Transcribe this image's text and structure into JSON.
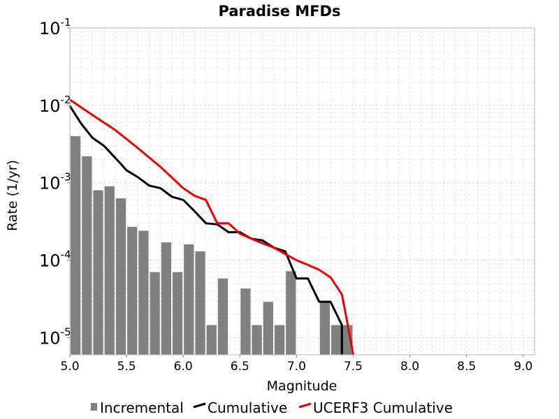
{
  "chart_data": {
    "type": "bar",
    "title": "Paradise MFDs",
    "xlabel": "Magnitude",
    "ylabel": "Rate (1/yr)",
    "xlim": [
      5.0,
      9.1
    ],
    "ylim": [
      6e-06,
      0.1
    ],
    "yscale": "log",
    "grid": true,
    "legend_position": "bottom",
    "x_ticks": [
      "5.0",
      "5.5",
      "6.0",
      "6.5",
      "7.0",
      "7.5",
      "8.0",
      "8.5",
      "9.0"
    ],
    "y_ticks": [
      {
        "base": "10",
        "exp": "-5",
        "value": 1e-05
      },
      {
        "base": "10",
        "exp": "-4",
        "value": 0.0001
      },
      {
        "base": "10",
        "exp": "-3",
        "value": 0.001
      },
      {
        "base": "10",
        "exp": "-2",
        "value": 0.01
      },
      {
        "base": "10",
        "exp": "-1",
        "value": 0.1
      }
    ],
    "series": [
      {
        "name": "Incremental",
        "kind": "bar",
        "color": "#808080",
        "x": [
          5.05,
          5.15,
          5.25,
          5.35,
          5.45,
          5.55,
          5.65,
          5.75,
          5.85,
          5.95,
          6.05,
          6.15,
          6.25,
          6.35,
          6.55,
          6.65,
          6.75,
          6.85,
          6.95,
          7.25,
          7.35,
          7.45
        ],
        "values": [
          0.004,
          0.0022,
          0.0008,
          0.0009,
          0.00063,
          0.00027,
          0.00024,
          7e-05,
          0.00017,
          7e-05,
          0.00016,
          0.00013,
          1.45e-05,
          5.8e-05,
          4.3e-05,
          1.45e-05,
          2.9e-05,
          1.45e-05,
          7.2e-05,
          2.9e-05,
          1.45e-05,
          1.45e-05
        ]
      },
      {
        "name": "Cumulative",
        "kind": "line",
        "color": "#000000",
        "x": [
          5.0,
          5.1,
          5.2,
          5.3,
          5.4,
          5.5,
          5.6,
          5.7,
          5.8,
          5.9,
          6.0,
          6.1,
          6.2,
          6.3,
          6.4,
          6.5,
          6.6,
          6.7,
          6.8,
          6.9,
          7.0,
          7.1,
          7.2,
          7.3,
          7.4,
          7.4
        ],
        "values": [
          0.0098,
          0.0058,
          0.0038,
          0.003,
          0.0021,
          0.00145,
          0.00118,
          0.00092,
          0.00085,
          0.00066,
          0.0006,
          0.00043,
          0.0003,
          0.00029,
          0.00023,
          0.00023,
          0.00019,
          0.00018,
          0.000145,
          0.00013,
          5.8e-05,
          5.8e-05,
          2.9e-05,
          2.9e-05,
          1.45e-05,
          6e-06
        ]
      },
      {
        "name": "UCERF3 Cumulative",
        "kind": "line",
        "color": "#ee0000",
        "x": [
          5.0,
          5.2,
          5.4,
          5.6,
          5.8,
          6.0,
          6.1,
          6.2,
          6.3,
          6.4,
          6.5,
          6.6,
          6.7,
          6.8,
          6.9,
          7.0,
          7.1,
          7.2,
          7.3,
          7.4,
          7.45,
          7.5
        ],
        "values": [
          0.0118,
          0.0075,
          0.0048,
          0.0028,
          0.0016,
          0.00085,
          0.00068,
          0.0006,
          0.0003,
          0.0003,
          0.00022,
          0.00019,
          0.000165,
          0.000145,
          0.00012,
          0.0001,
          8.7e-05,
          7.5e-05,
          6e-05,
          3.6e-05,
          1.5e-05,
          6e-06
        ]
      }
    ]
  }
}
